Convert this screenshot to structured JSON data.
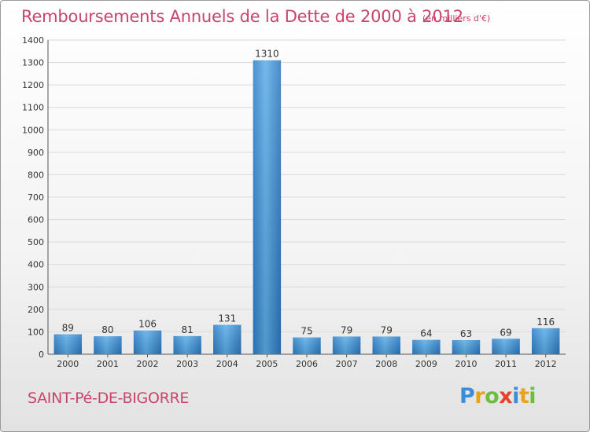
{
  "chart_data": {
    "type": "bar",
    "title": "Remboursements Annuels de la Dette de 2000 à 2012",
    "subtitle": "(en milliers d'€)",
    "categories": [
      "2000",
      "2001",
      "2002",
      "2003",
      "2004",
      "2005",
      "2006",
      "2007",
      "2008",
      "2009",
      "2010",
      "2011",
      "2012"
    ],
    "values": [
      89,
      80,
      106,
      81,
      131,
      1310,
      75,
      79,
      79,
      64,
      63,
      69,
      116
    ],
    "ylim": [
      0,
      1400
    ],
    "yticks": [
      0,
      100,
      200,
      300,
      400,
      500,
      600,
      700,
      800,
      900,
      1000,
      1100,
      1200,
      1300,
      1400
    ],
    "xlabel": "",
    "ylabel": "",
    "grid": true,
    "bar_color": "#3a8fd8"
  },
  "footer": {
    "town": "SAINT-Pé-DE-BIGORRE",
    "logo_letters": [
      "P",
      "r",
      "o",
      "x",
      "i",
      "t",
      "i"
    ],
    "logo_colors": [
      "#3a8ed8",
      "#e8a317",
      "#6cbf3a",
      "#e6432f",
      "#3a8ed8",
      "#e8a317",
      "#6cbf3a"
    ]
  }
}
